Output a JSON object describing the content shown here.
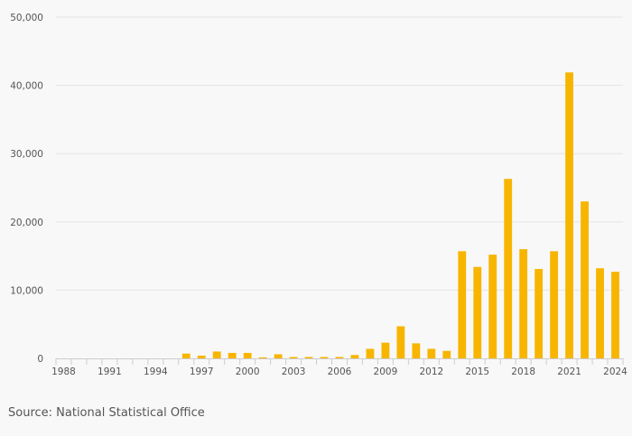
{
  "source_text": "Source: National Statistical Office",
  "colors": {
    "bar": "#f7b500",
    "grid": "#e4e4e4",
    "axis": "#cccccc",
    "tick_label": "#555555",
    "background": "#f8f8f8"
  },
  "chart_data": {
    "type": "bar",
    "title": "",
    "xlabel": "",
    "ylabel": "",
    "ylim": [
      0,
      50000
    ],
    "grid": true,
    "legend": "none",
    "y_ticks": [
      0,
      10000,
      20000,
      30000,
      40000,
      50000
    ],
    "y_tick_labels": [
      "0",
      "10,000",
      "20,000",
      "30,000",
      "40,000",
      "50,000"
    ],
    "x_tick_labels": [
      "1988",
      "1991",
      "1994",
      "1997",
      "2000",
      "2003",
      "2006",
      "2009",
      "2012",
      "2015",
      "2018",
      "2021",
      "2024"
    ],
    "categories": [
      1988,
      1989,
      1990,
      1991,
      1992,
      1993,
      1994,
      1995,
      1996,
      1997,
      1998,
      1999,
      2000,
      2001,
      2002,
      2003,
      2004,
      2005,
      2006,
      2007,
      2008,
      2009,
      2010,
      2011,
      2012,
      2013,
      2014,
      2015,
      2016,
      2017,
      2018,
      2019,
      2020,
      2021,
      2022,
      2023,
      2024
    ],
    "values": [
      0,
      0,
      0,
      0,
      0,
      0,
      0,
      0,
      700,
      400,
      1000,
      800,
      800,
      150,
      600,
      200,
      200,
      200,
      200,
      500,
      1400,
      2300,
      4700,
      2200,
      1400,
      1100,
      15700,
      13400,
      15200,
      26300,
      16000,
      13100,
      15700,
      41900,
      23000,
      13200,
      12700
    ]
  }
}
